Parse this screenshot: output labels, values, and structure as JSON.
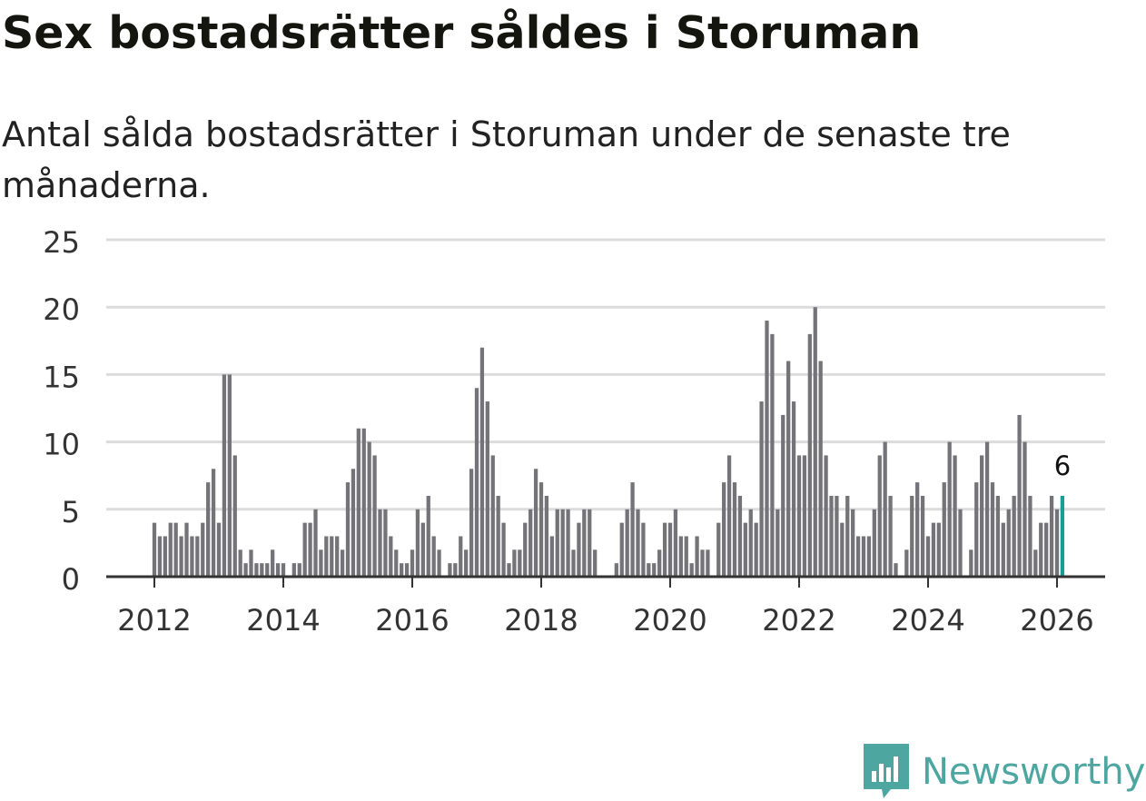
{
  "header": {
    "title": "Sex bostadsrätter såldes i Storuman",
    "subtitle": "Antal sålda bostadsrätter i Storuman under de senaste tre månaderna."
  },
  "brand": {
    "name": "Newsworthy",
    "icon": "newsworthy-logo-icon",
    "color": "#4ea6a1"
  },
  "colors": {
    "bar": "#737378",
    "highlight": "#1a9e94",
    "grid": "#dcdcdc",
    "axis": "#333333",
    "text": "#333333"
  },
  "chart_data": {
    "type": "bar",
    "title": "Sex bostadsrätter såldes i Storuman",
    "subtitle": "Antal sålda bostadsrätter i Storuman under de senaste tre månaderna.",
    "xlabel": "",
    "ylabel": "",
    "ylim": [
      0,
      25
    ],
    "yticks": [
      0,
      5,
      10,
      15,
      20,
      25
    ],
    "xlim": [
      2011.25,
      2026.75
    ],
    "xticks": [
      2012,
      2014,
      2016,
      2018,
      2020,
      2022,
      2024,
      2026
    ],
    "grid": true,
    "start": 2012,
    "step_months": 1,
    "highlight_last": true,
    "last_label": "6",
    "values": [
      4,
      3,
      3,
      4,
      4,
      3,
      4,
      3,
      3,
      4,
      7,
      8,
      4,
      15,
      15,
      9,
      2,
      1,
      2,
      1,
      1,
      1,
      2,
      1,
      1,
      0,
      1,
      1,
      4,
      4,
      5,
      2,
      3,
      3,
      3,
      2,
      7,
      8,
      11,
      11,
      10,
      9,
      5,
      5,
      3,
      2,
      1,
      1,
      2,
      5,
      4,
      6,
      3,
      2,
      0,
      1,
      1,
      3,
      2,
      8,
      14,
      17,
      13,
      9,
      6,
      4,
      1,
      2,
      2,
      4,
      5,
      8,
      7,
      6,
      3,
      5,
      5,
      5,
      2,
      4,
      5,
      5,
      2,
      0,
      0,
      0,
      1,
      4,
      5,
      7,
      5,
      4,
      1,
      1,
      2,
      4,
      4,
      5,
      3,
      3,
      1,
      3,
      2,
      2,
      0,
      4,
      7,
      9,
      7,
      6,
      4,
      5,
      4,
      13,
      19,
      18,
      5,
      12,
      16,
      13,
      9,
      9,
      18,
      20,
      16,
      9,
      6,
      6,
      4,
      6,
      5,
      3,
      3,
      3,
      5,
      9,
      10,
      6,
      1,
      0,
      2,
      6,
      7,
      6,
      3,
      4,
      4,
      7,
      10,
      9,
      5,
      0,
      2,
      7,
      9,
      10,
      7,
      6,
      4,
      5,
      6,
      12,
      10,
      6,
      2,
      4,
      4,
      6,
      5,
      6
    ]
  }
}
